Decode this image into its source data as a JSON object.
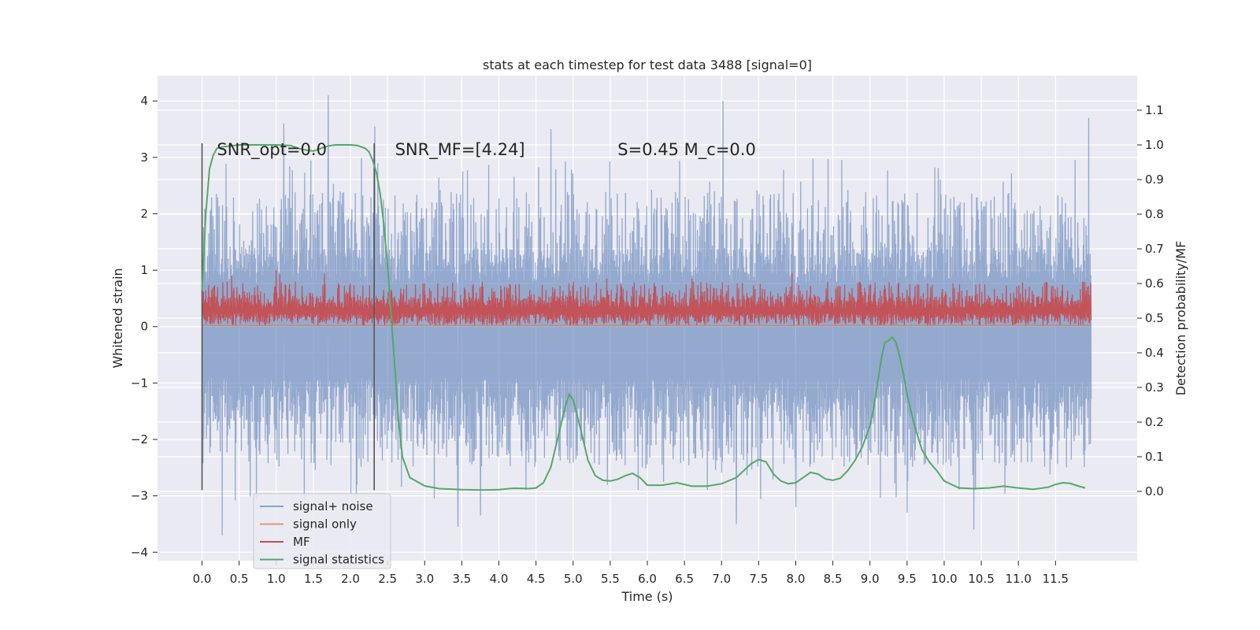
{
  "chart_data": {
    "type": "line",
    "title": "stats at each timestep for test data 3488 [signal=0]",
    "xlabel": "Time (s)",
    "ylabel": "Whitened strain",
    "y2label": "Detection probability/MF",
    "xlim": [
      -0.6,
      12.6
    ],
    "ylim": [
      -4.15,
      4.45
    ],
    "y2lim": [
      -0.2,
      1.2
    ],
    "x_ticks": [
      0.0,
      0.5,
      1.0,
      1.5,
      2.0,
      2.5,
      3.0,
      3.5,
      4.0,
      4.5,
      5.0,
      5.5,
      6.0,
      6.5,
      7.0,
      7.5,
      8.0,
      8.5,
      9.0,
      9.5,
      10.0,
      10.5,
      11.0,
      11.5
    ],
    "x_tick_labels": [
      "0.0",
      "0.5",
      "1.0",
      "1.5",
      "2.0",
      "2.5",
      "3.0",
      "3.5",
      "4.0",
      "4.5",
      "5.0",
      "5.5",
      "6.0",
      "6.5",
      "7.0",
      "7.5",
      "8.0",
      "8.5",
      "9.0",
      "9.5",
      "10.0",
      "10.5",
      "11.0",
      "11.5"
    ],
    "y_ticks": [
      -4,
      -3,
      -2,
      -1,
      0,
      1,
      2,
      3,
      4
    ],
    "y_tick_labels": [
      "−4",
      "−3",
      "−2",
      "−1",
      "0",
      "1",
      "2",
      "3",
      "4"
    ],
    "y2_ticks": [
      0.0,
      0.1,
      0.2,
      0.3,
      0.4,
      0.5,
      0.6,
      0.7,
      0.8,
      0.9,
      1.0,
      1.1
    ],
    "y2_tick_labels": [
      "0.0",
      "0.1",
      "0.2",
      "0.3",
      "0.4",
      "0.5",
      "0.6",
      "0.7",
      "0.8",
      "0.9",
      "1.0",
      "1.1"
    ],
    "grid": true,
    "legend_position": "lower-left",
    "annotations": [
      {
        "x": 0.2,
        "y": 3.15,
        "text": "SNR_opt=0.0"
      },
      {
        "x": 2.6,
        "y": 3.15,
        "text": "SNR_MF=[4.24]"
      },
      {
        "x": 5.6,
        "y": 3.15,
        "text": "S=0.45   M_c=0.0"
      }
    ],
    "vlines": [
      {
        "x": 0.0,
        "ymin": -2.9,
        "ymax": 3.25
      },
      {
        "x": 2.32,
        "ymin": -2.9,
        "ymax": 3.25
      }
    ],
    "series": [
      {
        "name": "signal+ noise",
        "axis": "left",
        "color": "#4c72b0",
        "style": "noise",
        "x_range": [
          0.0,
          11.98
        ],
        "envelope": {
          "core_low": -1.65,
          "core_high": 1.4,
          "typical_peak_high": 2.4,
          "typical_peak_low": -2.5
        },
        "extremes": [
          {
            "x": 1.7,
            "y": 4.1
          },
          {
            "x": 7.02,
            "y": 4.0
          },
          {
            "x": 11.95,
            "y": 3.7
          },
          {
            "x": 1.1,
            "y": 3.6
          },
          {
            "x": 2.33,
            "y": 3.55
          },
          {
            "x": 4.7,
            "y": 3.5
          },
          {
            "x": 0.27,
            "y": -3.7
          },
          {
            "x": 3.45,
            "y": -3.55
          },
          {
            "x": 10.4,
            "y": -3.6
          },
          {
            "x": 7.2,
            "y": -3.5
          },
          {
            "x": 3.75,
            "y": -3.35
          },
          {
            "x": 8.0,
            "y": -3.2
          },
          {
            "x": 9.5,
            "y": -3.3
          }
        ]
      },
      {
        "name": "signal only",
        "axis": "left",
        "color": "#dd8452",
        "x": [
          0.0,
          11.98
        ],
        "y": [
          0.02,
          0.02
        ]
      },
      {
        "name": "MF",
        "axis": "left",
        "color": "#c44e52",
        "style": "noise",
        "x_range": [
          0.0,
          11.98
        ],
        "envelope": {
          "low": 0.02,
          "core_high": 0.55,
          "typical_peak_high": 0.8
        },
        "extremes": [
          {
            "x": 1.0,
            "y": 1.0
          },
          {
            "x": 1.65,
            "y": 0.95
          },
          {
            "x": 7.95,
            "y": 0.95
          },
          {
            "x": 1.05,
            "y": 0.92
          },
          {
            "x": 5.45,
            "y": 0.85
          },
          {
            "x": 6.6,
            "y": 0.85
          },
          {
            "x": 0.4,
            "y": 0.9
          }
        ]
      },
      {
        "name": "signal statistics",
        "axis": "right",
        "color": "#55a868",
        "x": [
          0.0,
          0.05,
          0.1,
          0.15,
          0.2,
          0.3,
          0.5,
          0.8,
          1.0,
          1.2,
          1.3,
          1.4,
          1.5,
          1.6,
          1.7,
          1.8,
          1.9,
          2.0,
          2.1,
          2.2,
          2.25,
          2.3,
          2.35,
          2.4,
          2.45,
          2.5,
          2.55,
          2.6,
          2.65,
          2.7,
          2.8,
          3.0,
          3.2,
          3.5,
          3.8,
          4.0,
          4.2,
          4.4,
          4.5,
          4.6,
          4.7,
          4.8,
          4.9,
          4.95,
          5.0,
          5.1,
          5.2,
          5.3,
          5.4,
          5.5,
          5.6,
          5.7,
          5.8,
          5.9,
          6.0,
          6.2,
          6.4,
          6.6,
          6.8,
          7.0,
          7.2,
          7.3,
          7.4,
          7.5,
          7.6,
          7.7,
          7.8,
          7.9,
          8.0,
          8.1,
          8.2,
          8.3,
          8.4,
          8.5,
          8.6,
          8.7,
          8.8,
          8.9,
          9.0,
          9.05,
          9.1,
          9.15,
          9.2,
          9.25,
          9.3,
          9.35,
          9.4,
          9.45,
          9.5,
          9.6,
          9.7,
          9.8,
          9.9,
          10.0,
          10.2,
          10.4,
          10.6,
          10.8,
          11.0,
          11.2,
          11.4,
          11.5,
          11.6,
          11.7,
          11.8,
          11.9
        ],
        "y": [
          0.58,
          0.8,
          0.93,
          0.97,
          0.99,
          0.995,
          1.0,
          1.0,
          1.0,
          0.998,
          0.99,
          0.985,
          0.982,
          0.99,
          0.997,
          1.0,
          1.0,
          1.0,
          0.998,
          0.99,
          0.98,
          0.955,
          0.92,
          0.86,
          0.77,
          0.65,
          0.5,
          0.35,
          0.2,
          0.1,
          0.04,
          0.016,
          0.008,
          0.005,
          0.004,
          0.005,
          0.009,
          0.008,
          0.01,
          0.025,
          0.07,
          0.16,
          0.25,
          0.28,
          0.265,
          0.18,
          0.09,
          0.045,
          0.032,
          0.03,
          0.035,
          0.045,
          0.052,
          0.04,
          0.018,
          0.018,
          0.025,
          0.015,
          0.015,
          0.022,
          0.04,
          0.06,
          0.08,
          0.092,
          0.085,
          0.05,
          0.03,
          0.022,
          0.025,
          0.04,
          0.055,
          0.05,
          0.036,
          0.032,
          0.038,
          0.06,
          0.09,
          0.13,
          0.19,
          0.24,
          0.31,
          0.38,
          0.43,
          0.435,
          0.445,
          0.43,
          0.39,
          0.34,
          0.28,
          0.19,
          0.12,
          0.085,
          0.06,
          0.03,
          0.01,
          0.008,
          0.01,
          0.015,
          0.01,
          0.006,
          0.012,
          0.02,
          0.025,
          0.023,
          0.016,
          0.01
        ]
      }
    ]
  }
}
